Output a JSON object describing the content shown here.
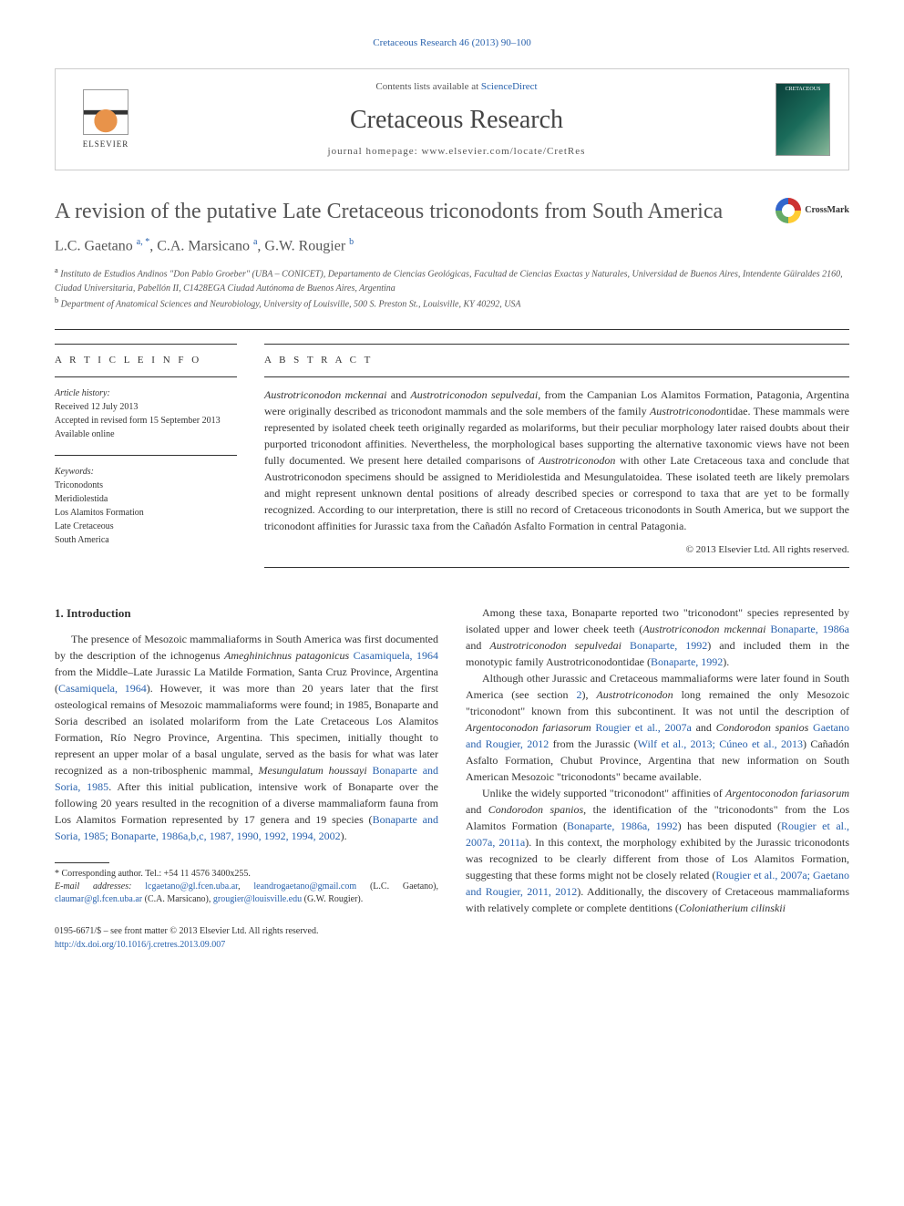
{
  "header": {
    "journal_ref": "Cretaceous Research 46 (2013) 90–100",
    "contents_prefix": "Contents lists available at ",
    "contents_link": "ScienceDirect",
    "journal_name": "Cretaceous Research",
    "homepage_prefix": "journal homepage: ",
    "homepage_url": "www.elsevier.com/locate/CretRes",
    "elsevier_label": "ELSEVIER",
    "cover_label": "CRETACEOUS",
    "crossmark": "CrossMark"
  },
  "paper": {
    "title": "A revision of the putative Late Cretaceous triconodonts from South America",
    "authors_html": "L.C. Gaetano <sup>a, *</sup>, C.A. Marsicano <sup>a</sup>, G.W. Rougier <sup>b</sup>",
    "affiliations": [
      {
        "sup": "a",
        "text": "Instituto de Estudios Andinos \"Don Pablo Groeber\" (UBA – CONICET), Departamento de Ciencias Geológicas, Facultad de Ciencias Exactas y Naturales, Universidad de Buenos Aires, Intendente Güiraldes 2160, Ciudad Universitaria, Pabellón II, C1428EGA Ciudad Autónoma de Buenos Aires, Argentina"
      },
      {
        "sup": "b",
        "text": "Department of Anatomical Sciences and Neurobiology, University of Louisville, 500 S. Preston St., Louisville, KY 40292, USA"
      }
    ]
  },
  "article_info": {
    "heading": "A R T I C L E   I N F O",
    "history_label": "Article history:",
    "history": [
      "Received 12 July 2013",
      "Accepted in revised form 15 September 2013",
      "Available online"
    ],
    "keywords_label": "Keywords:",
    "keywords": [
      "Triconodonts",
      "Meridiolestida",
      "Los Alamitos Formation",
      "Late Cretaceous",
      "South America"
    ]
  },
  "abstract": {
    "heading": "A B S T R A C T",
    "text": "Austrotriconodon mckennai and Austrotriconodon sepulvedai, from the Campanian Los Alamitos Formation, Patagonia, Argentina were originally described as triconodont mammals and the sole members of the family Austrotriconodontidae. These mammals were represented by isolated cheek teeth originally regarded as molariforms, but their peculiar morphology later raised doubts about their purported triconodont affinities. Nevertheless, the morphological bases supporting the alternative taxonomic views have not been fully documented. We present here detailed comparisons of Austrotriconodon with other Late Cretaceous taxa and conclude that Austrotriconodon specimens should be assigned to Meridiolestida and Mesungulatoidea. These isolated teeth are likely premolars and might represent unknown dental positions of already described species or correspond to taxa that are yet to be formally recognized. According to our interpretation, there is still no record of Cretaceous triconodonts in South America, but we support the triconodont affinities for Jurassic taxa from the Cañadón Asfalto Formation in central Patagonia.",
    "copyright": "© 2013 Elsevier Ltd. All rights reserved."
  },
  "body": {
    "section_heading": "1. Introduction",
    "col1_paras": [
      "The presence of Mesozoic mammaliaforms in South America was first documented by the description of the ichnogenus <em>Ameghinichnus patagonicus</em> <a>Casamiquela, 1964</a> from the Middle–Late Jurassic La Matilde Formation, Santa Cruz Province, Argentina (<a>Casamiquela, 1964</a>). However, it was more than 20 years later that the first osteological remains of Mesozoic mammaliaforms were found; in 1985, Bonaparte and Soria described an isolated molariform from the Late Cretaceous Los Alamitos Formation, Río Negro Province, Argentina. This specimen, initially thought to represent an upper molar of a basal ungulate, served as the basis for what was later recognized as a non-tribosphenic mammal, <em>Mesungulatum houssayi</em> <a>Bonaparte and Soria, 1985</a>. After this initial publication, intensive work of Bonaparte over the following 20 years resulted in the recognition of a diverse mammaliaform fauna from Los Alamitos Formation represented by 17 genera and 19 species (<a>Bonaparte and Soria, 1985; Bonaparte, 1986a,b,c, 1987, 1990, 1992, 1994, 2002</a>)."
    ],
    "col2_paras": [
      "Among these taxa, Bonaparte reported two \"triconodont\" species represented by isolated upper and lower cheek teeth (<em>Austrotriconodon mckennai</em> <a>Bonaparte, 1986a</a> and <em>Austrotriconodon sepulvedai</em> <a>Bonaparte, 1992</a>) and included them in the monotypic family Austrotriconodontidae (<a>Bonaparte, 1992</a>).",
      "Although other Jurassic and Cretaceous mammaliaforms were later found in South America (see section <a>2</a>), <em>Austrotriconodon</em> long remained the only Mesozoic \"triconodont\" known from this subcontinent. It was not until the description of <em>Argentoconodon fariasorum</em> <a>Rougier et al., 2007a</a> and <em>Condorodon spanios</em> <a>Gaetano and Rougier, 2012</a> from the Jurassic (<a>Wilf et al., 2013; Cúneo et al., 2013</a>) Cañadón Asfalto Formation, Chubut Province, Argentina that new information on South American Mesozoic \"triconodonts\" became available.",
      "Unlike the widely supported \"triconodont\" affinities of <em>Argentoconodon fariasorum</em> and <em>Condorodon spanios</em>, the identification of the \"triconodonts\" from the Los Alamitos Formation (<a>Bonaparte, 1986a, 1992</a>) has been disputed (<a>Rougier et al., 2007a, 2011a</a>). In this context, the morphology exhibited by the Jurassic triconodonts was recognized to be clearly different from those of Los Alamitos Formation, suggesting that these forms might not be closely related (<a>Rougier et al., 2007a; Gaetano and Rougier, 2011, 2012</a>). Additionally, the discovery of Cretaceous mammaliaforms with relatively complete or complete dentitions (<em>Coloniatherium cilinskii</em>"
    ]
  },
  "footnotes": {
    "corresponding": "* Corresponding author. Tel.: +54 11 4576 3400x255.",
    "emails_label": "E-mail addresses:",
    "emails": [
      {
        "addr": "lcgaetano@gl.fcen.uba.ar",
        "sep": ", "
      },
      {
        "addr": "leandrogaetano@gmail.com",
        "sep": " (L.C. Gaetano), "
      },
      {
        "addr": "claumar@gl.fcen.uba.ar",
        "sep": " (C.A. Marsicano), "
      },
      {
        "addr": "grougier@louisville.edu",
        "sep": " (G.W. Rougier)."
      }
    ]
  },
  "footer": {
    "issn": "0195-6671/$ – see front matter © 2013 Elsevier Ltd. All rights reserved.",
    "doi": "http://dx.doi.org/10.1016/j.cretres.2013.09.007"
  },
  "colors": {
    "link": "#2962ad",
    "text": "#333333",
    "heading": "#555555"
  }
}
